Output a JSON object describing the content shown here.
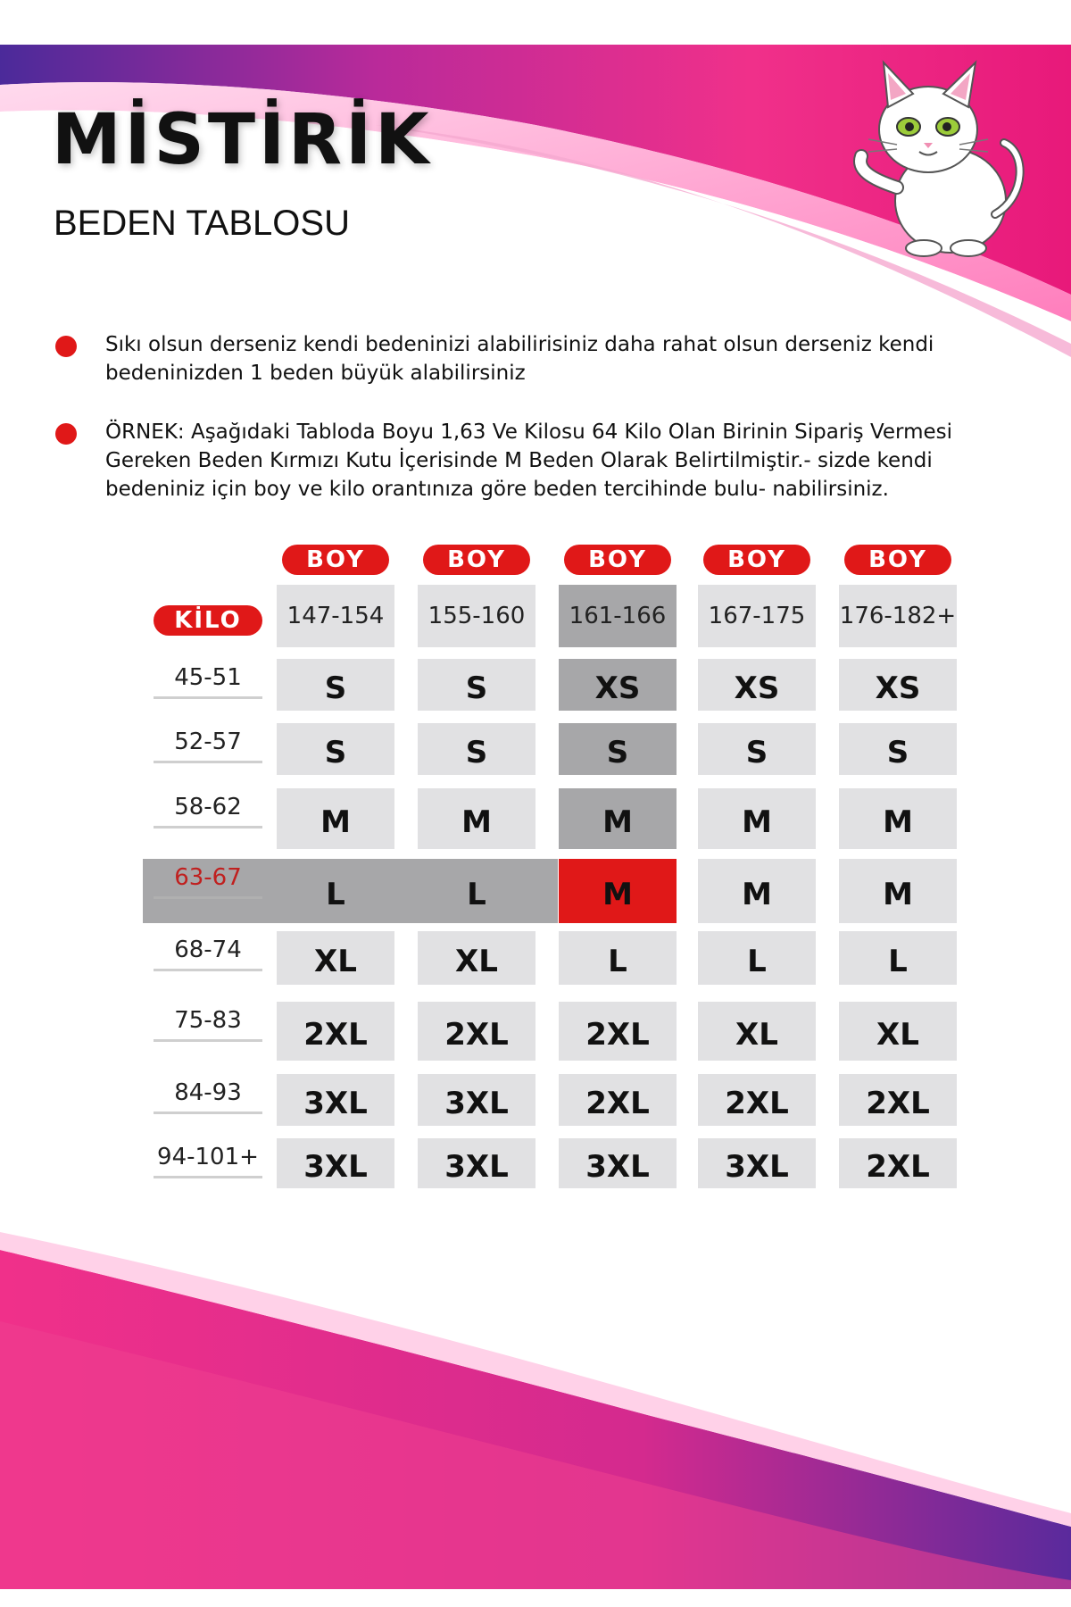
{
  "brand": "MİSTİRİK",
  "subtitle": "BEDEN TABLOSU",
  "illustration": "white-cat-illustration",
  "colors": {
    "accent": "#e01818",
    "pink": "#ee2b82",
    "purple": "#5a2a9c",
    "cell": "#e1e1e3",
    "cell_dark": "#a7a7a9"
  },
  "notes": [
    "Sıkı olsun derseniz kendi bedeninizi alabilirisiniz daha rahat olsun derseniz kendi bedeninizden 1 beden büyük alabilirsiniz",
    "ÖRNEK: Aşağıdaki Tabloda Boyu 1,63 Ve Kilosu 64 Kilo Olan Birinin Sipariş Vermesi Gereken Beden Kırmızı Kutu İçerisinde M Beden Olarak Belirtilmiştir.- sizde kendi bedeniniz için boy ve kilo orantınıza göre beden tercihinde bulu- nabilirsiniz."
  ],
  "table": {
    "boy_label": "BOY",
    "kilo_label": "KİLO",
    "heights": [
      "147-154",
      "155-160",
      "161-166",
      "167-175",
      "176-182+"
    ],
    "rows": [
      {
        "kilo": "45-51",
        "sizes": [
          "S",
          "S",
          "XS",
          "XS",
          "XS"
        ]
      },
      {
        "kilo": "52-57",
        "sizes": [
          "S",
          "S",
          "S",
          "S",
          "S"
        ]
      },
      {
        "kilo": "58-62",
        "sizes": [
          "M",
          "M",
          "M",
          "M",
          "M"
        ]
      },
      {
        "kilo": "63-67",
        "sizes": [
          "L",
          "L",
          "M",
          "M",
          "M"
        ]
      },
      {
        "kilo": "68-74",
        "sizes": [
          "XL",
          "XL",
          "L",
          "L",
          "L"
        ]
      },
      {
        "kilo": "75-83",
        "sizes": [
          "2XL",
          "2XL",
          "2XL",
          "XL",
          "XL"
        ]
      },
      {
        "kilo": "84-93",
        "sizes": [
          "3XL",
          "3XL",
          "2XL",
          "2XL",
          "2XL"
        ]
      },
      {
        "kilo": "94-101+",
        "sizes": [
          "3XL",
          "3XL",
          "3XL",
          "3XL",
          "2XL"
        ]
      }
    ],
    "highlight_column": 2,
    "highlight_row": 3
  }
}
